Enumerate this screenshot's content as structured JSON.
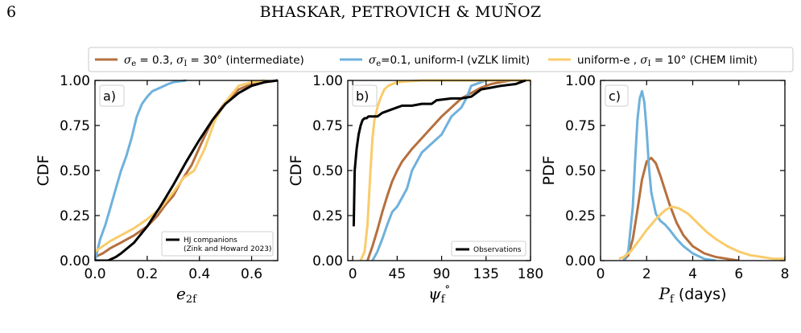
{
  "header": {
    "page_number": "6",
    "running_head": "BHASKAR, PETROVICH & MUÑOZ"
  },
  "legend": {
    "entries": [
      {
        "label": "σe = 0.3, σI = 30° (intermediate)",
        "color": "#b5703f"
      },
      {
        "label": "σe=0.1, uniform-I (vZLK limit)",
        "color": "#6fb1dc"
      },
      {
        "label": "uniform-e , σI = 10° (CHEM limit)",
        "color": "#f9cc6b"
      }
    ]
  },
  "chart_data": [
    {
      "type": "line",
      "panel_tag": "a)",
      "xlabel": "e2f",
      "ylabel": "CDF",
      "xlim": [
        0,
        0.7
      ],
      "ylim": [
        0,
        1
      ],
      "xticks": [
        "0.0",
        "0.2",
        "0.4",
        "0.6"
      ],
      "yticks": [
        "0.00",
        "0.25",
        "0.50",
        "0.75",
        "1.00"
      ],
      "legend_placement": "lower-right",
      "legend": [
        "HJ companions",
        "(Zink and Howard 2023)"
      ],
      "series": [
        {
          "color": "#b5703f",
          "x": [
            0,
            0.03,
            0.06,
            0.1,
            0.15,
            0.2,
            0.24,
            0.27,
            0.3,
            0.33,
            0.37,
            0.41,
            0.45,
            0.5,
            0.55,
            0.6,
            0.65,
            0.7
          ],
          "y": [
            0.02,
            0.04,
            0.07,
            0.1,
            0.14,
            0.19,
            0.25,
            0.31,
            0.36,
            0.44,
            0.53,
            0.66,
            0.78,
            0.88,
            0.95,
            0.98,
            0.99,
            1.0
          ]
        },
        {
          "color": "#6fb1dc",
          "x": [
            0,
            0.02,
            0.04,
            0.06,
            0.08,
            0.1,
            0.12,
            0.14,
            0.16,
            0.18,
            0.2,
            0.22,
            0.25,
            0.28,
            0.3,
            0.35
          ],
          "y": [
            0,
            0.12,
            0.2,
            0.3,
            0.4,
            0.5,
            0.58,
            0.68,
            0.8,
            0.87,
            0.91,
            0.94,
            0.96,
            0.98,
            0.99,
            1.0
          ]
        },
        {
          "color": "#f9cc6b",
          "x": [
            0,
            0.03,
            0.06,
            0.1,
            0.15,
            0.2,
            0.25,
            0.3,
            0.34,
            0.38,
            0.42,
            0.46,
            0.5,
            0.55,
            0.6,
            0.65
          ],
          "y": [
            0.05,
            0.08,
            0.11,
            0.14,
            0.18,
            0.23,
            0.29,
            0.38,
            0.46,
            0.5,
            0.62,
            0.78,
            0.88,
            0.97,
            0.99,
            1.0
          ]
        },
        {
          "color": "#000000",
          "x": [
            0,
            0.05,
            0.08,
            0.1,
            0.15,
            0.2,
            0.25,
            0.3,
            0.35,
            0.4,
            0.45,
            0.5,
            0.55,
            0.6,
            0.65,
            0.7
          ],
          "y": [
            0,
            0,
            0.02,
            0.04,
            0.1,
            0.19,
            0.3,
            0.42,
            0.55,
            0.67,
            0.78,
            0.87,
            0.93,
            0.97,
            0.99,
            1.0
          ]
        }
      ]
    },
    {
      "type": "line",
      "panel_tag": "b)",
      "xlabel": "ψf°",
      "ylabel": "CDF",
      "xlim": [
        -5,
        180
      ],
      "ylim": [
        0,
        1
      ],
      "xticks": [
        "0",
        "45",
        "90",
        "135",
        "180"
      ],
      "yticks": [
        "0.00",
        "0.25",
        "0.50",
        "0.75",
        "1.00"
      ],
      "legend_placement": "lower-right",
      "legend": [
        "Observations"
      ],
      "series": [
        {
          "color": "#b5703f",
          "x": [
            15,
            20,
            25,
            30,
            35,
            40,
            45,
            50,
            60,
            70,
            80,
            90,
            100,
            110,
            120,
            130,
            140,
            150,
            160,
            170
          ],
          "y": [
            0,
            0.08,
            0.17,
            0.27,
            0.36,
            0.44,
            0.5,
            0.55,
            0.62,
            0.68,
            0.74,
            0.8,
            0.85,
            0.9,
            0.93,
            0.96,
            0.98,
            0.99,
            1.0,
            1.0
          ]
        },
        {
          "color": "#6fb1dc",
          "x": [
            20,
            25,
            30,
            35,
            40,
            45,
            50,
            55,
            60,
            70,
            80,
            90,
            100,
            110,
            115,
            120,
            130,
            135,
            150,
            165,
            175
          ],
          "y": [
            0,
            0.05,
            0.12,
            0.2,
            0.27,
            0.3,
            0.35,
            0.4,
            0.5,
            0.6,
            0.65,
            0.7,
            0.8,
            0.85,
            0.9,
            0.97,
            0.99,
            1.0,
            1.0,
            1.0,
            1.0
          ]
        },
        {
          "color": "#f9cc6b",
          "x": [
            8,
            12,
            15,
            18,
            20,
            22,
            25,
            28,
            32,
            36,
            40,
            45,
            55,
            70,
            90,
            120,
            150,
            180
          ],
          "y": [
            0,
            0.05,
            0.2,
            0.5,
            0.68,
            0.78,
            0.85,
            0.9,
            0.95,
            0.97,
            0.98,
            0.99,
            0.995,
            1.0,
            1.0,
            1.0,
            1.0,
            1.0
          ]
        },
        {
          "color": "#000000",
          "x": [
            1,
            2,
            4,
            6,
            8,
            10,
            12,
            14,
            16,
            18,
            20,
            25,
            30,
            35,
            40,
            45,
            50,
            60,
            70,
            80,
            85,
            100,
            110,
            120,
            125,
            130,
            140,
            150,
            165,
            170,
            175
          ],
          "y": [
            0.19,
            0.5,
            0.62,
            0.7,
            0.75,
            0.78,
            0.79,
            0.79,
            0.8,
            0.8,
            0.8,
            0.8,
            0.82,
            0.83,
            0.84,
            0.85,
            0.86,
            0.86,
            0.87,
            0.87,
            0.89,
            0.9,
            0.9,
            0.91,
            0.93,
            0.95,
            0.96,
            0.97,
            0.98,
            0.99,
            1.0
          ]
        }
      ]
    },
    {
      "type": "line",
      "panel_tag": "c)",
      "xlabel": "Pf (days)",
      "ylabel": "PDF",
      "xlim": [
        0,
        8
      ],
      "ylim": [
        0,
        1
      ],
      "xticks": [
        "0",
        "2",
        "4",
        "6",
        "8"
      ],
      "yticks": [
        "0.00",
        "0.25",
        "0.50",
        "0.75",
        "1.00"
      ],
      "series": [
        {
          "color": "#b5703f",
          "x": [
            1.0,
            1.2,
            1.4,
            1.6,
            1.8,
            2.0,
            2.2,
            2.4,
            2.6,
            2.8,
            3.0,
            3.3,
            3.6,
            4.0,
            4.5,
            5.0,
            5.5,
            6.0
          ],
          "y": [
            0,
            0.03,
            0.12,
            0.28,
            0.45,
            0.55,
            0.57,
            0.54,
            0.47,
            0.39,
            0.31,
            0.21,
            0.14,
            0.08,
            0.04,
            0.02,
            0.01,
            0
          ]
        },
        {
          "color": "#6fb1dc",
          "x": [
            1.0,
            1.2,
            1.4,
            1.5,
            1.6,
            1.7,
            1.8,
            1.9,
            2.0,
            2.1,
            2.2,
            2.4,
            2.6,
            2.8,
            3.0,
            3.3,
            3.6,
            4.0,
            4.5,
            5.0
          ],
          "y": [
            0,
            0.05,
            0.3,
            0.55,
            0.78,
            0.9,
            0.94,
            0.88,
            0.72,
            0.52,
            0.38,
            0.26,
            0.22,
            0.2,
            0.17,
            0.12,
            0.08,
            0.04,
            0.01,
            0
          ]
        },
        {
          "color": "#f9cc6b",
          "x": [
            0.8,
            1.0,
            1.3,
            1.6,
            2.0,
            2.4,
            2.8,
            3.1,
            3.4,
            3.8,
            4.2,
            4.6,
            5.0,
            5.5,
            6.0,
            6.5,
            7.0,
            7.5,
            8.0
          ],
          "y": [
            0.01,
            0.02,
            0.05,
            0.1,
            0.17,
            0.23,
            0.28,
            0.3,
            0.29,
            0.26,
            0.21,
            0.16,
            0.12,
            0.08,
            0.05,
            0.03,
            0.02,
            0.01,
            0.01
          ]
        }
      ]
    }
  ]
}
